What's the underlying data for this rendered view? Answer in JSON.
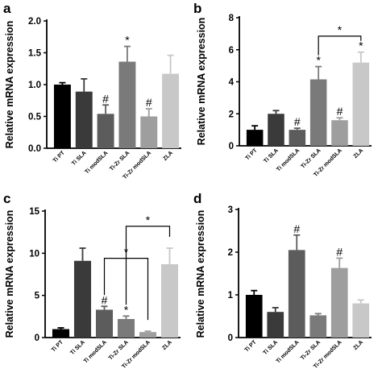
{
  "chart_data": [
    {
      "panel": "a",
      "type": "bar",
      "ylabel": "Relative mRNA expression",
      "ylim": [
        0,
        2.0
      ],
      "yticks": [
        "0.0",
        "0.5",
        "1.0",
        "1.5",
        "2.0"
      ],
      "categories": [
        "Ti PT",
        "Ti SLA",
        "Ti modSLA",
        "Ti-Zr SLA",
        "Ti-Zr modSLA",
        "ZLA"
      ],
      "values": [
        1.0,
        0.89,
        0.54,
        1.36,
        0.5,
        1.17
      ],
      "errors": [
        0.03,
        0.2,
        0.14,
        0.24,
        0.12,
        0.29
      ],
      "markers": [
        "",
        "",
        "#",
        "*",
        "#",
        ""
      ],
      "colors": [
        "#000000",
        "#3a3a3a",
        "#5c5c5c",
        "#7a7a7a",
        "#9e9e9e",
        "#c8c8c8"
      ],
      "brackets": []
    },
    {
      "panel": "b",
      "type": "bar",
      "ylabel": "Relative mRNA expression",
      "ylim": [
        0,
        8
      ],
      "yticks": [
        "0",
        "2",
        "4",
        "6",
        "8"
      ],
      "categories": [
        "Ti PT",
        "Ti SLA",
        "Ti modSLA",
        "Ti-Zr SLA",
        "Ti-Zr modSLA",
        "ZLA"
      ],
      "values": [
        1.0,
        2.0,
        1.0,
        4.15,
        1.6,
        5.2
      ],
      "errors": [
        0.25,
        0.2,
        0.1,
        0.8,
        0.15,
        0.65
      ],
      "markers": [
        "",
        "",
        "#",
        "*",
        "#",
        "*"
      ],
      "colors": [
        "#000000",
        "#3a3a3a",
        "#5c5c5c",
        "#7a7a7a",
        "#9e9e9e",
        "#c8c8c8"
      ],
      "brackets": [
        {
          "from": 3,
          "to": 5,
          "y": 6.85,
          "label": "*"
        }
      ]
    },
    {
      "panel": "c",
      "type": "bar",
      "ylabel": "Relative mRNA expression",
      "ylim": [
        0,
        15
      ],
      "yticks": [
        "0",
        "5",
        "10",
        "15"
      ],
      "categories": [
        "Ti PT",
        "Ti SLA",
        "Ti modSLA",
        "Ti-Zr SLA",
        "Ti-Zr modSLA",
        "ZLA"
      ],
      "values": [
        1.0,
        9.1,
        3.3,
        2.2,
        0.65,
        8.7
      ],
      "errors": [
        0.15,
        1.5,
        0.4,
        0.35,
        0.1,
        1.9
      ],
      "markers": [
        "",
        "",
        "#",
        "*",
        "",
        ""
      ],
      "colors": [
        "#000000",
        "#3a3a3a",
        "#5c5c5c",
        "#7a7a7a",
        "#9e9e9e",
        "#c8c8c8"
      ],
      "brackets": [
        {
          "from": 2,
          "to": 4,
          "y": 9.4,
          "label": "*"
        },
        {
          "from": 3,
          "to": 5,
          "y": 13.2,
          "label": "*"
        }
      ]
    },
    {
      "panel": "d",
      "type": "bar",
      "ylabel": "Relative mRNA expression",
      "ylim": [
        0,
        3
      ],
      "yticks": [
        "0",
        "1",
        "2",
        "3"
      ],
      "categories": [
        "Ti PT",
        "Ti SLA",
        "Ti modSLA",
        "Ti-Zr SLA",
        "Ti-Zr modSLA",
        "ZLA"
      ],
      "values": [
        1.0,
        0.6,
        2.05,
        0.52,
        1.63,
        0.8
      ],
      "errors": [
        0.1,
        0.1,
        0.35,
        0.04,
        0.23,
        0.08
      ],
      "markers": [
        "",
        "",
        "#",
        "",
        "#",
        ""
      ],
      "colors": [
        "#000000",
        "#3a3a3a",
        "#5c5c5c",
        "#7a7a7a",
        "#9e9e9e",
        "#c8c8c8"
      ],
      "brackets": []
    }
  ]
}
